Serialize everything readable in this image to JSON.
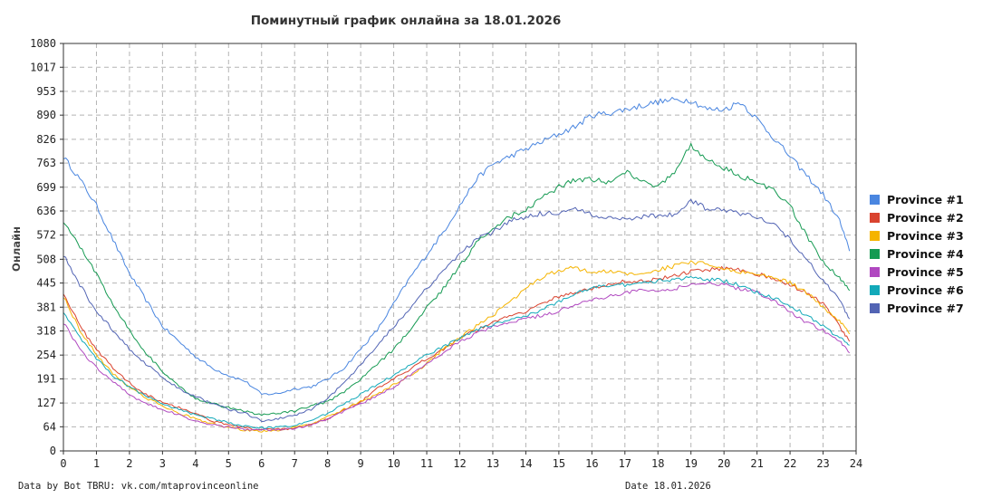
{
  "chart_data": {
    "type": "line",
    "title": "Поминутный график онлайна за 18.01.2026",
    "ylabel": "Онлайн",
    "xlabel": "",
    "xlim": [
      0,
      24
    ],
    "ylim": [
      0,
      1080
    ],
    "x_ticks": [
      "0",
      "1",
      "2",
      "3",
      "4",
      "5",
      "6",
      "7",
      "8",
      "9",
      "10",
      "11",
      "12",
      "13",
      "14",
      "15",
      "16",
      "17",
      "18",
      "19",
      "20",
      "21",
      "22",
      "23",
      "24"
    ],
    "y_ticks": [
      "0",
      "64",
      "127",
      "191",
      "254",
      "318",
      "381",
      "445",
      "508",
      "572",
      "636",
      "699",
      "763",
      "826",
      "890",
      "953",
      "1017",
      "1080"
    ],
    "grid": true,
    "legend_position": "right",
    "x": [
      0,
      0.5,
      1,
      1.5,
      2,
      2.5,
      3,
      3.5,
      4,
      4.5,
      5,
      5.5,
      6,
      6.5,
      7,
      7.5,
      8,
      8.5,
      9,
      9.5,
      10,
      10.5,
      11,
      11.5,
      12,
      12.5,
      13,
      13.5,
      14,
      14.5,
      15,
      15.5,
      16,
      16.5,
      17,
      17.5,
      18,
      18.5,
      19,
      19.5,
      20,
      20.5,
      21,
      21.5,
      22,
      22.5,
      23,
      23.5,
      23.8
    ],
    "series": [
      {
        "name": "Province #1",
        "color": "#4a86e0",
        "values": [
          780,
          720,
          650,
          560,
          470,
          400,
          330,
          290,
          250,
          220,
          200,
          185,
          150,
          152,
          165,
          170,
          190,
          220,
          270,
          320,
          390,
          460,
          520,
          580,
          650,
          720,
          760,
          780,
          800,
          820,
          840,
          860,
          890,
          895,
          905,
          915,
          925,
          930,
          930,
          905,
          905,
          925,
          880,
          830,
          780,
          730,
          680,
          610,
          530
        ]
      },
      {
        "name": "Province #2",
        "color": "#d9432f",
        "values": [
          420,
          330,
          270,
          220,
          180,
          150,
          130,
          115,
          100,
          80,
          70,
          62,
          55,
          58,
          58,
          70,
          85,
          110,
          130,
          165,
          190,
          215,
          245,
          270,
          300,
          320,
          340,
          360,
          370,
          390,
          410,
          420,
          430,
          440,
          450,
          450,
          455,
          465,
          475,
          480,
          485,
          480,
          470,
          455,
          440,
          420,
          390,
          330,
          290
        ]
      },
      {
        "name": "Province #3",
        "color": "#f5b400",
        "values": [
          410,
          320,
          255,
          205,
          170,
          140,
          120,
          100,
          85,
          72,
          62,
          55,
          52,
          55,
          62,
          70,
          90,
          110,
          130,
          150,
          175,
          200,
          230,
          270,
          300,
          330,
          360,
          395,
          430,
          460,
          480,
          485,
          475,
          475,
          470,
          470,
          480,
          490,
          500,
          495,
          480,
          475,
          470,
          460,
          445,
          420,
          380,
          345,
          310
        ]
      },
      {
        "name": "Province #4",
        "color": "#159a52",
        "values": [
          610,
          540,
          470,
          390,
          320,
          260,
          210,
          170,
          140,
          125,
          115,
          105,
          95,
          100,
          105,
          120,
          130,
          155,
          190,
          230,
          270,
          320,
          380,
          430,
          490,
          550,
          590,
          620,
          640,
          670,
          700,
          720,
          720,
          710,
          740,
          720,
          700,
          740,
          810,
          770,
          750,
          730,
          710,
          690,
          650,
          570,
          500,
          460,
          425
        ]
      },
      {
        "name": "Province #5",
        "color": "#b048c0",
        "values": [
          340,
          270,
          220,
          185,
          150,
          125,
          110,
          95,
          80,
          70,
          63,
          57,
          55,
          57,
          60,
          70,
          85,
          105,
          125,
          145,
          170,
          200,
          230,
          260,
          290,
          310,
          330,
          340,
          350,
          360,
          370,
          390,
          400,
          410,
          420,
          425,
          425,
          430,
          440,
          445,
          440,
          430,
          420,
          400,
          370,
          340,
          320,
          290,
          260
        ]
      },
      {
        "name": "Province #6",
        "color": "#12a9b9",
        "values": [
          370,
          300,
          245,
          200,
          170,
          145,
          125,
          110,
          95,
          85,
          75,
          65,
          62,
          62,
          68,
          80,
          100,
          125,
          150,
          175,
          200,
          230,
          255,
          275,
          300,
          320,
          335,
          345,
          360,
          375,
          395,
          415,
          435,
          440,
          440,
          445,
          450,
          455,
          460,
          455,
          450,
          440,
          420,
          405,
          385,
          360,
          330,
          300,
          280
        ]
      },
      {
        "name": "Province #7",
        "color": "#5264b4",
        "values": [
          520,
          440,
          370,
          320,
          270,
          230,
          195,
          165,
          145,
          125,
          110,
          100,
          80,
          85,
          95,
          110,
          140,
          180,
          230,
          280,
          330,
          380,
          430,
          480,
          520,
          560,
          580,
          610,
          620,
          630,
          630,
          640,
          625,
          620,
          615,
          620,
          625,
          625,
          665,
          640,
          640,
          630,
          620,
          600,
          560,
          510,
          450,
          400,
          350
        ]
      }
    ]
  },
  "footer": {
    "left": "Data by Bot TBRU: vk.com/mtaprovinceonline",
    "right": "Date 18.01.2026"
  }
}
